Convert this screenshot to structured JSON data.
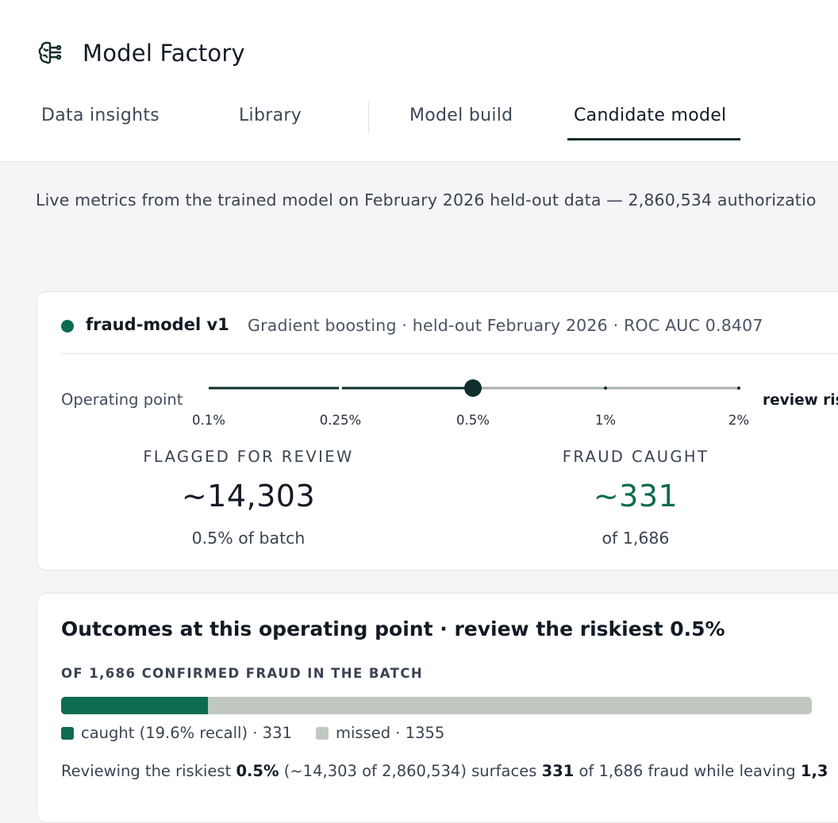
{
  "app": {
    "title": "Model Factory",
    "logo_icon": "brain-circuit-icon"
  },
  "tabs": [
    {
      "label": "Data insights"
    },
    {
      "label": "Library"
    },
    {
      "label": "Model build"
    },
    {
      "label": "Candidate model",
      "active": true
    }
  ],
  "intro": "Live metrics from the trained model on February 2026 held-out data — 2,860,534 authorizatio",
  "model": {
    "name": "fraud-model v1",
    "meta": "Gradient boosting · held-out February 2026 · ROC AUC 0.8407",
    "status_color": "#0e6b4f"
  },
  "operating_point": {
    "label": "Operating point",
    "ticks": [
      "0.1%",
      "0.25%",
      "0.5%",
      "1%",
      "2%"
    ],
    "selected_index": 2,
    "right_label": "review ris"
  },
  "metrics": {
    "flagged": {
      "label": "FLAGGED FOR REVIEW",
      "value": "~14,303",
      "sub": "0.5% of batch"
    },
    "caught": {
      "label": "FRAUD CAUGHT",
      "value": "~331",
      "sub": "of 1,686",
      "color": "#0e6b4f"
    }
  },
  "outcomes": {
    "title": "Outcomes at this operating point · review the riskiest 0.5%",
    "subtitle": "OF 1,686 CONFIRMED FRAUD IN THE BATCH",
    "caught_fraction": 0.196,
    "legend": {
      "caught": "caught (19.6% recall) · 331",
      "missed": "missed · 1355"
    },
    "colors": {
      "caught": "#0e6b4f",
      "missed": "#c1c8bf"
    },
    "summary": {
      "t1": "Reviewing the riskiest ",
      "b1": "0.5%",
      "t2": " (~14,303 of 2,860,534) surfaces ",
      "b2": "331",
      "t3": " of 1,686 fraud while leaving ",
      "b3": "1,3"
    }
  }
}
